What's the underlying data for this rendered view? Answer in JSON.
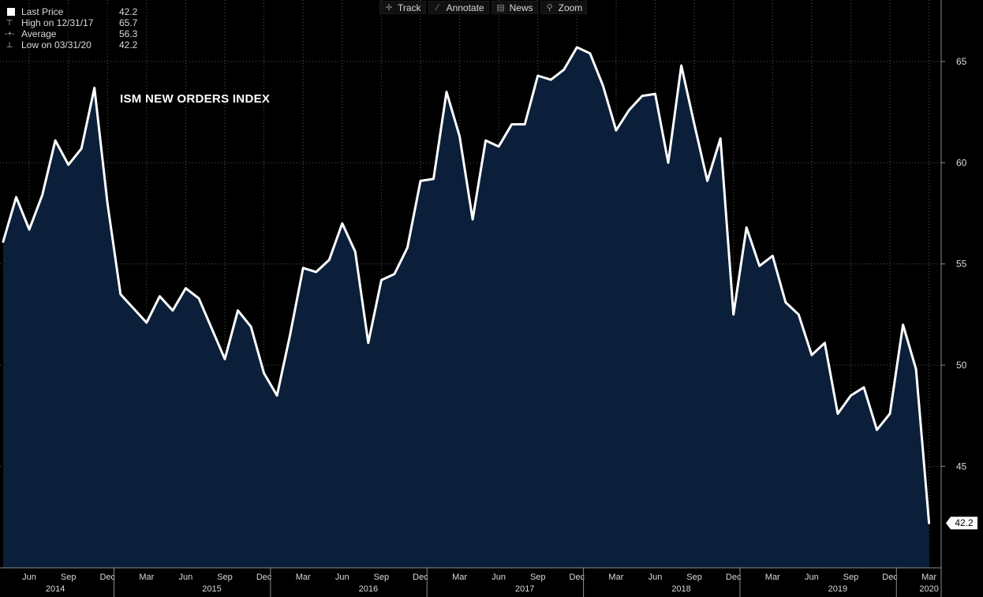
{
  "toolbar": {
    "track_label": "Track",
    "annotate_label": "Annotate",
    "news_label": "News",
    "zoom_label": "Zoom"
  },
  "legend": {
    "items": [
      {
        "label": "Last Price",
        "value": "42.2",
        "icon": "square-marker-icon"
      },
      {
        "label": "High on 12/31/17",
        "value": "65.7",
        "icon": "high-marker-icon"
      },
      {
        "label": "Average",
        "value": "56.3",
        "icon": "average-marker-icon"
      },
      {
        "label": "Low on 03/31/20",
        "value": "42.2",
        "icon": "low-marker-icon"
      }
    ]
  },
  "last_price_tag": "42.2",
  "colors": {
    "background": "#000000",
    "area_fill": "#0b1f3a",
    "line": "#ffffff",
    "grid": "#5a5a5a",
    "axis_text": "#d9d9d9",
    "legend_text": "#d9d9d9"
  },
  "chart_data": {
    "type": "area",
    "title": "ISM NEW ORDERS INDEX",
    "xlabel": "",
    "ylabel": "",
    "ylim": [
      41,
      68
    ],
    "grid": true,
    "y_axis_side": "right",
    "yticks": [
      45,
      50,
      55,
      60,
      65
    ],
    "x_month_labels": [
      {
        "label": "Jun",
        "date": "2014-06"
      },
      {
        "label": "Sep",
        "date": "2014-09"
      },
      {
        "label": "Dec",
        "date": "2014-12"
      },
      {
        "label": "Mar",
        "date": "2015-03"
      },
      {
        "label": "Jun",
        "date": "2015-06"
      },
      {
        "label": "Sep",
        "date": "2015-09"
      },
      {
        "label": "Dec",
        "date": "2015-12"
      },
      {
        "label": "Mar",
        "date": "2016-03"
      },
      {
        "label": "Jun",
        "date": "2016-06"
      },
      {
        "label": "Sep",
        "date": "2016-09"
      },
      {
        "label": "Dec",
        "date": "2016-12"
      },
      {
        "label": "Mar",
        "date": "2017-03"
      },
      {
        "label": "Jun",
        "date": "2017-06"
      },
      {
        "label": "Sep",
        "date": "2017-09"
      },
      {
        "label": "Dec",
        "date": "2017-12"
      },
      {
        "label": "Mar",
        "date": "2018-03"
      },
      {
        "label": "Jun",
        "date": "2018-06"
      },
      {
        "label": "Sep",
        "date": "2018-09"
      },
      {
        "label": "Dec",
        "date": "2018-12"
      },
      {
        "label": "Mar",
        "date": "2019-03"
      },
      {
        "label": "Jun",
        "date": "2019-06"
      },
      {
        "label": "Sep",
        "date": "2019-09"
      },
      {
        "label": "Dec",
        "date": "2019-12"
      },
      {
        "label": "Mar",
        "date": "2020-03"
      }
    ],
    "x_year_labels": [
      {
        "label": "2014",
        "date": "2014-08"
      },
      {
        "label": "2015",
        "date": "2015-08"
      },
      {
        "label": "2016",
        "date": "2016-08"
      },
      {
        "label": "2017",
        "date": "2017-08"
      },
      {
        "label": "2018",
        "date": "2018-08"
      },
      {
        "label": "2019",
        "date": "2019-08"
      },
      {
        "label": "2020",
        "date": "2020-03"
      }
    ],
    "year_separators": [
      "2015-01",
      "2016-01",
      "2017-01",
      "2018-01",
      "2019-01",
      "2020-01"
    ],
    "series": [
      {
        "name": "Last Price",
        "x": [
          "2014-04",
          "2014-05",
          "2014-06",
          "2014-07",
          "2014-08",
          "2014-09",
          "2014-10",
          "2014-11",
          "2014-12",
          "2015-01",
          "2015-02",
          "2015-03",
          "2015-04",
          "2015-05",
          "2015-06",
          "2015-07",
          "2015-08",
          "2015-09",
          "2015-10",
          "2015-11",
          "2015-12",
          "2016-01",
          "2016-02",
          "2016-03",
          "2016-04",
          "2016-05",
          "2016-06",
          "2016-07",
          "2016-08",
          "2016-09",
          "2016-10",
          "2016-11",
          "2016-12",
          "2017-01",
          "2017-02",
          "2017-03",
          "2017-04",
          "2017-05",
          "2017-06",
          "2017-07",
          "2017-08",
          "2017-09",
          "2017-10",
          "2017-11",
          "2017-12",
          "2018-01",
          "2018-02",
          "2018-03",
          "2018-04",
          "2018-05",
          "2018-06",
          "2018-07",
          "2018-08",
          "2018-09",
          "2018-10",
          "2018-11",
          "2018-12",
          "2019-01",
          "2019-02",
          "2019-03",
          "2019-04",
          "2019-05",
          "2019-06",
          "2019-07",
          "2019-08",
          "2019-09",
          "2019-10",
          "2019-11",
          "2019-12",
          "2020-01",
          "2020-02",
          "2020-03"
        ],
        "values": [
          56.1,
          58.3,
          56.7,
          58.4,
          61.1,
          59.9,
          60.7,
          63.7,
          58.0,
          53.5,
          52.8,
          52.1,
          53.4,
          52.7,
          53.8,
          53.3,
          51.8,
          50.3,
          52.7,
          51.9,
          49.6,
          48.5,
          51.5,
          54.8,
          54.6,
          55.2,
          57.0,
          55.6,
          51.1,
          54.2,
          54.5,
          55.8,
          59.1,
          59.2,
          63.5,
          61.3,
          57.2,
          61.1,
          60.8,
          61.9,
          61.9,
          64.3,
          64.1,
          64.6,
          65.7,
          65.4,
          63.8,
          61.6,
          62.6,
          63.3,
          63.4,
          60.0,
          64.8,
          61.9,
          59.1,
          61.2,
          52.5,
          56.8,
          54.9,
          55.4,
          53.1,
          52.5,
          50.5,
          51.1,
          47.6,
          48.5,
          48.9,
          46.8,
          47.6,
          52.0,
          49.8,
          42.2
        ]
      }
    ]
  }
}
